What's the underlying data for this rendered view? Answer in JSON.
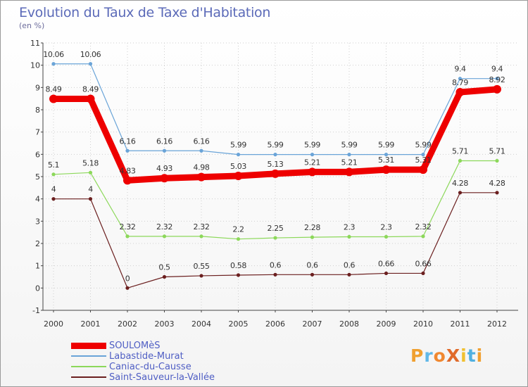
{
  "title": "Evolution du Taux de Taxe d'Habitation",
  "subtitle": "(en %)",
  "logo": {
    "text": "ProXiti",
    "colors": [
      "#f0a030",
      "#60b8e8",
      "#f08830",
      "#e06a2a",
      "#f0c030",
      "#50b0e0",
      "#f0a030"
    ]
  },
  "chart_data": {
    "type": "line",
    "x": [
      "2000",
      "2001",
      "2002",
      "2003",
      "2004",
      "2005",
      "2006",
      "2007",
      "2008",
      "2009",
      "2010",
      "2011",
      "2012"
    ],
    "ylim": [
      -1,
      11
    ],
    "yticks": [
      "-1",
      "0",
      "1",
      "2",
      "3",
      "4",
      "5",
      "6",
      "7",
      "8",
      "9",
      "10",
      "11"
    ],
    "grid": true,
    "legend_position": "bottom-left",
    "series": [
      {
        "name": "Saint-Sauveur-la-Vallée",
        "color": "#6b1f1f",
        "width": 1.2,
        "marker": 2.6,
        "values": [
          4,
          4,
          0,
          0.5,
          0.55,
          0.58,
          0.6,
          0.6,
          0.6,
          0.66,
          0.66,
          4.28,
          4.28
        ],
        "labels": [
          "4",
          "4",
          "0",
          "0.5",
          "0.55",
          "0.58",
          "0.6",
          "0.6",
          "0.6",
          "0.66",
          "0.66",
          "4.28",
          "4.28"
        ]
      },
      {
        "name": "Caniac-du-Causse",
        "color": "#8cd85a",
        "width": 1.2,
        "marker": 2.6,
        "values": [
          5.1,
          5.18,
          2.32,
          2.32,
          2.32,
          2.2,
          2.25,
          2.28,
          2.3,
          2.3,
          2.32,
          5.71,
          5.71
        ],
        "labels": [
          "5.1",
          "5.18",
          "2.32",
          "2.32",
          "2.32",
          "2.2",
          "2.25",
          "2.28",
          "2.3",
          "2.3",
          "2.32",
          "5.71",
          "5.71"
        ]
      },
      {
        "name": "Labastide-Murat",
        "color": "#6aa4d8",
        "width": 1.2,
        "marker": 2.6,
        "values": [
          10.06,
          10.06,
          6.16,
          6.16,
          6.16,
          5.99,
          5.99,
          5.99,
          5.99,
          5.99,
          5.99,
          9.4,
          9.4
        ],
        "labels": [
          "10.06",
          "10.06",
          "6.16",
          "6.16",
          "6.16",
          "5.99",
          "5.99",
          "5.99",
          "5.99",
          "5.99",
          "5.99",
          "9.4",
          "9.4"
        ]
      },
      {
        "name": "SOULOMèS",
        "color": "#ee0000",
        "width": 9,
        "marker": 6,
        "values": [
          8.49,
          8.49,
          4.83,
          4.93,
          4.98,
          5.03,
          5.13,
          5.21,
          5.21,
          5.31,
          5.31,
          8.79,
          8.92
        ],
        "labels": [
          "8.49",
          "8.49",
          "4.83",
          "4.93",
          "4.98",
          "5.03",
          "5.13",
          "5.21",
          "5.21",
          "5.31",
          "5.31",
          "8.79",
          "8.92"
        ]
      }
    ]
  }
}
